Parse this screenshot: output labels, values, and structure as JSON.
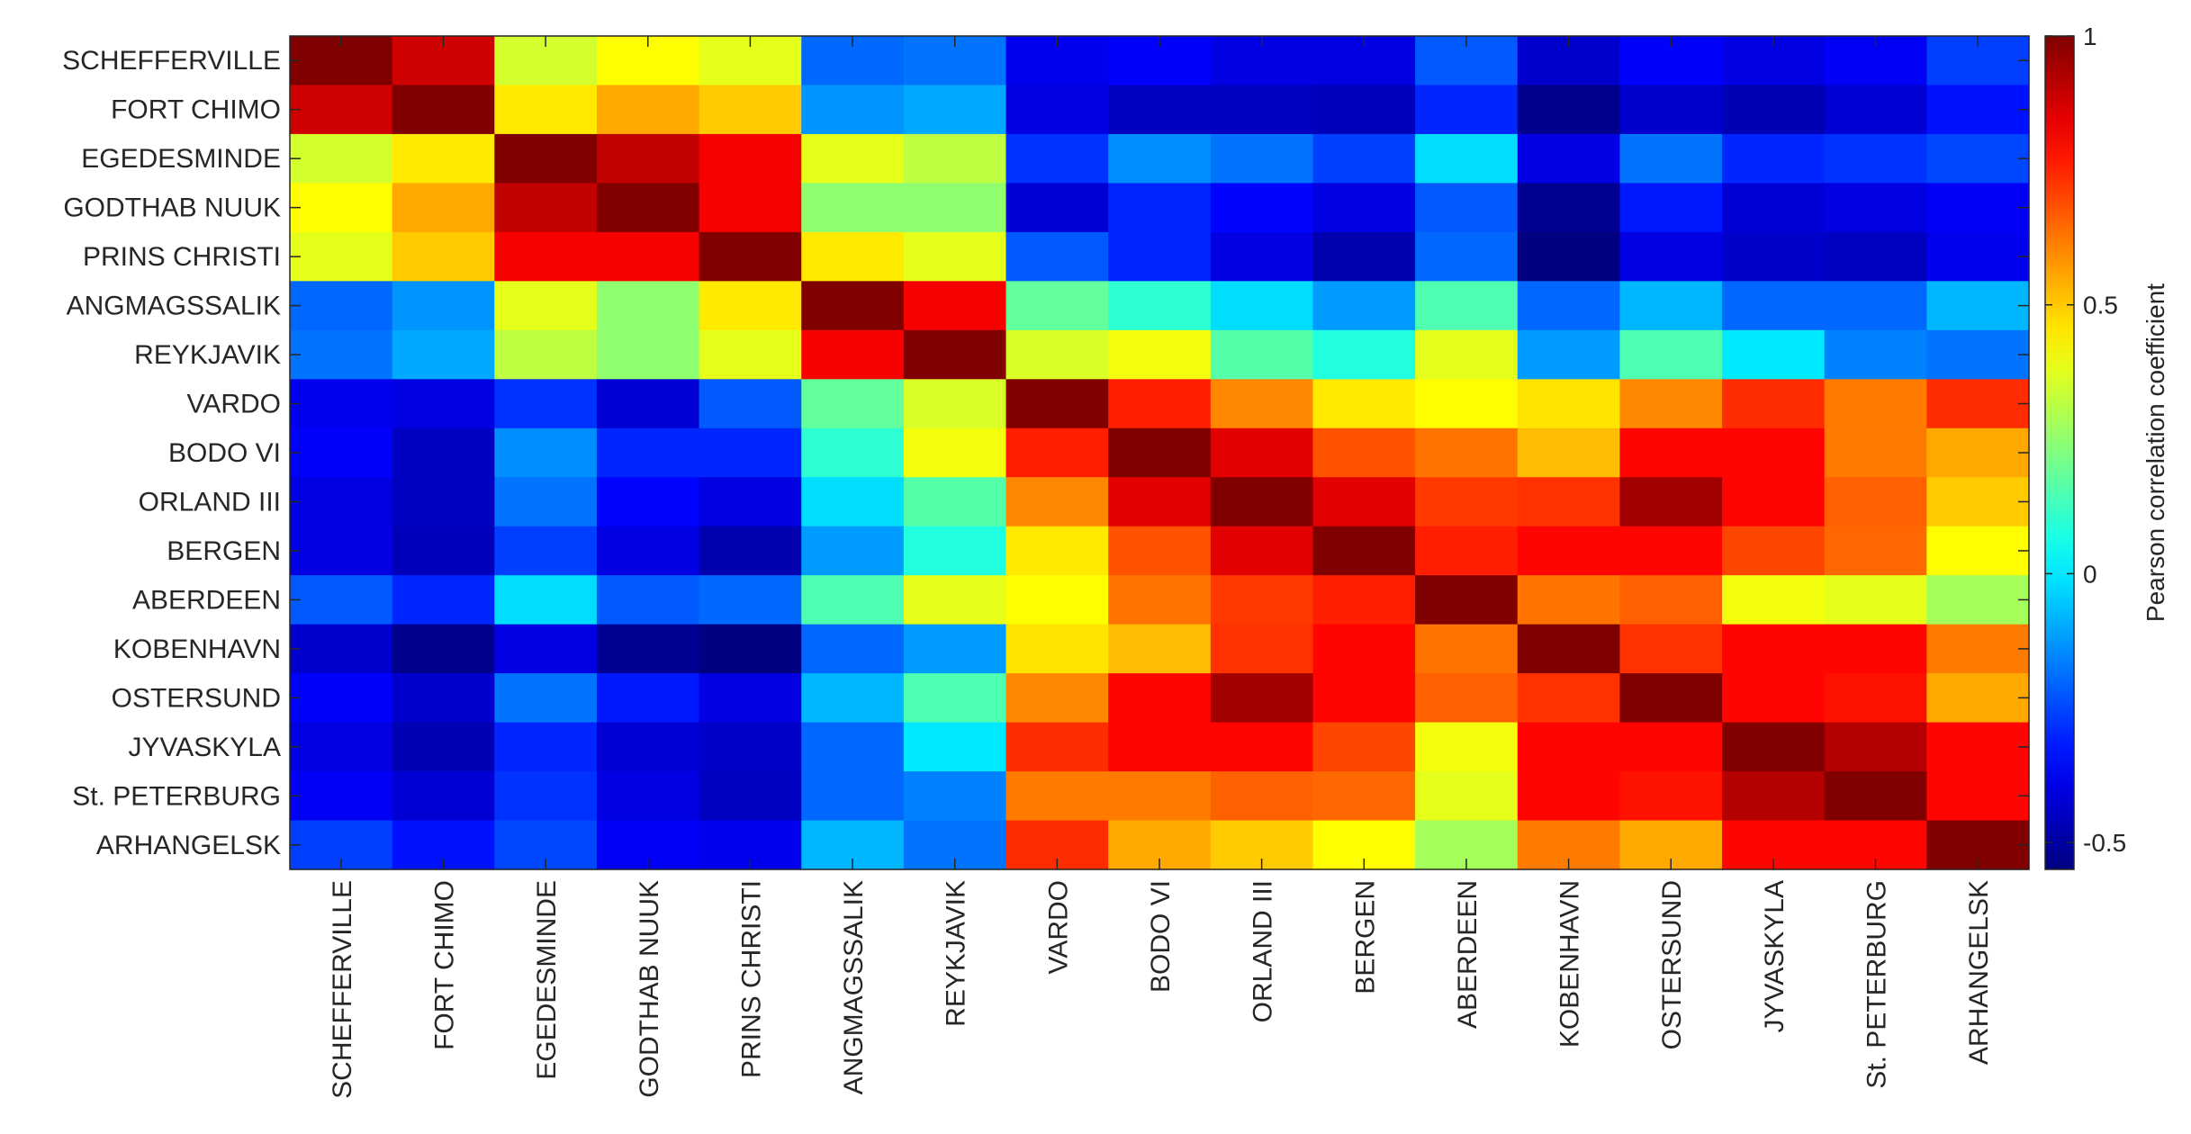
{
  "chart_data": {
    "type": "heatmap",
    "title": "",
    "stations": [
      "SCHEFFERVILLE",
      "FORT CHIMO",
      "EGEDESMINDE",
      "GODTHAB NUUK",
      "PRINS CHRISTI",
      "ANGMAGSSALIK",
      "REYKJAVIK",
      "VARDO",
      "BODO VI",
      "ORLAND III",
      "BERGEN",
      "ABERDEEN",
      "KOBENHAVN",
      "OSTERSUND",
      "JYVASKYLA",
      "St. PETERBURG",
      "ARHANGELSK"
    ],
    "matrix": [
      [
        1.0,
        0.88,
        0.35,
        0.42,
        0.38,
        -0.2,
        -0.18,
        -0.38,
        -0.36,
        -0.4,
        -0.4,
        -0.22,
        -0.43,
        -0.36,
        -0.4,
        -0.37,
        -0.26
      ],
      [
        0.88,
        1.0,
        0.45,
        0.55,
        0.5,
        -0.13,
        -0.1,
        -0.4,
        -0.45,
        -0.45,
        -0.46,
        -0.3,
        -0.53,
        -0.43,
        -0.47,
        -0.42,
        -0.33
      ],
      [
        0.35,
        0.45,
        1.0,
        0.9,
        0.82,
        0.38,
        0.32,
        -0.28,
        -0.14,
        -0.18,
        -0.26,
        -0.02,
        -0.4,
        -0.18,
        -0.3,
        -0.28,
        -0.25
      ],
      [
        0.42,
        0.55,
        0.9,
        1.0,
        0.82,
        0.25,
        0.25,
        -0.42,
        -0.3,
        -0.35,
        -0.4,
        -0.22,
        -0.52,
        -0.32,
        -0.42,
        -0.4,
        -0.37
      ],
      [
        0.38,
        0.5,
        0.82,
        0.82,
        1.0,
        0.45,
        0.38,
        -0.22,
        -0.3,
        -0.4,
        -0.48,
        -0.2,
        -0.56,
        -0.4,
        -0.44,
        -0.45,
        -0.38
      ],
      [
        -0.2,
        -0.13,
        0.38,
        0.25,
        0.45,
        1.0,
        0.82,
        0.18,
        0.1,
        -0.02,
        -0.12,
        0.15,
        -0.2,
        -0.08,
        -0.2,
        -0.2,
        -0.08
      ],
      [
        -0.18,
        -0.1,
        0.32,
        0.25,
        0.38,
        0.82,
        1.0,
        0.36,
        0.4,
        0.16,
        0.08,
        0.38,
        -0.12,
        0.15,
        0.0,
        -0.16,
        -0.18
      ],
      [
        -0.38,
        -0.4,
        -0.28,
        -0.42,
        -0.22,
        0.18,
        0.36,
        1.0,
        0.76,
        0.6,
        0.45,
        0.42,
        0.46,
        0.6,
        0.74,
        0.62,
        0.74
      ],
      [
        -0.36,
        -0.45,
        -0.14,
        -0.3,
        -0.3,
        0.1,
        0.4,
        0.76,
        1.0,
        0.85,
        0.68,
        0.63,
        0.52,
        0.8,
        0.8,
        0.62,
        0.55
      ],
      [
        -0.4,
        -0.45,
        -0.18,
        -0.35,
        -0.4,
        -0.02,
        0.16,
        0.6,
        0.85,
        1.0,
        0.85,
        0.72,
        0.73,
        0.95,
        0.8,
        0.66,
        0.5
      ],
      [
        -0.4,
        -0.46,
        -0.26,
        -0.4,
        -0.48,
        -0.12,
        0.08,
        0.45,
        0.68,
        0.85,
        1.0,
        0.76,
        0.8,
        0.8,
        0.7,
        0.65,
        0.42
      ],
      [
        -0.22,
        -0.3,
        -0.02,
        -0.22,
        -0.2,
        0.15,
        0.38,
        0.42,
        0.63,
        0.72,
        0.76,
        1.0,
        0.63,
        0.66,
        0.4,
        0.38,
        0.28
      ],
      [
        -0.43,
        -0.53,
        -0.4,
        -0.52,
        -0.56,
        -0.2,
        -0.12,
        0.46,
        0.52,
        0.73,
        0.8,
        0.63,
        1.0,
        0.73,
        0.8,
        0.8,
        0.62
      ],
      [
        -0.36,
        -0.43,
        -0.18,
        -0.32,
        -0.4,
        -0.08,
        0.15,
        0.6,
        0.8,
        0.95,
        0.8,
        0.66,
        0.73,
        1.0,
        0.8,
        0.78,
        0.55
      ],
      [
        -0.4,
        -0.47,
        -0.3,
        -0.42,
        -0.44,
        -0.2,
        0.0,
        0.74,
        0.8,
        0.8,
        0.7,
        0.4,
        0.8,
        0.8,
        1.0,
        0.92,
        0.8
      ],
      [
        -0.37,
        -0.42,
        -0.28,
        -0.4,
        -0.45,
        -0.2,
        -0.16,
        0.62,
        0.62,
        0.66,
        0.65,
        0.38,
        0.8,
        0.78,
        0.92,
        1.0,
        0.8
      ],
      [
        -0.26,
        -0.33,
        -0.25,
        -0.37,
        -0.38,
        -0.08,
        -0.18,
        0.74,
        0.55,
        0.5,
        0.42,
        0.28,
        0.62,
        0.55,
        0.8,
        0.8,
        1.0
      ]
    ],
    "colorbar": {
      "label": "Pearson correlation coefficient",
      "range": [
        -0.55,
        1
      ],
      "ticks": [
        1,
        0.5,
        0,
        -0.5
      ],
      "tick_labels": [
        "1",
        "0.5",
        "0",
        "-0.5"
      ],
      "colormap": "jet"
    }
  }
}
